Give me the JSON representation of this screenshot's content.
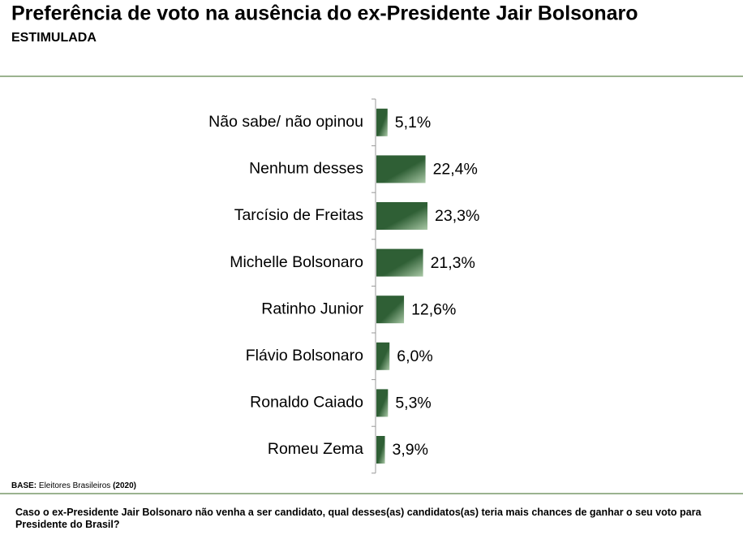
{
  "chart_data": {
    "type": "bar",
    "orientation": "horizontal",
    "title": "Preferência de voto na ausência do ex-Presidente Jair Bolsonaro",
    "subtitle": "ESTIMULADA",
    "categories": [
      "Não sabe/ não opinou",
      "Nenhum desses",
      "Tarcísio de Freitas",
      "Michelle Bolsonaro",
      "Ratinho Junior",
      "Flávio Bolsonaro",
      "Ronaldo Caiado",
      "Romeu Zema"
    ],
    "values": [
      5.1,
      22.4,
      23.3,
      21.3,
      12.6,
      6.0,
      5.3,
      3.9
    ],
    "value_labels": [
      "5,1%",
      "22,4%",
      "23,3%",
      "21,3%",
      "12,6%",
      "6,0%",
      "5,3%",
      "3,9%"
    ],
    "color": "#2f5f35",
    "base_label": "BASE:",
    "base_text": "Eleitores Brasileiros",
    "base_year": "(2020)",
    "question": "Caso o ex-Presidente Jair Bolsonaro não venha a ser candidato, qual desses(as) candidatos(as) teria mais chances de ganhar o seu voto para Presidente do Brasil?"
  }
}
